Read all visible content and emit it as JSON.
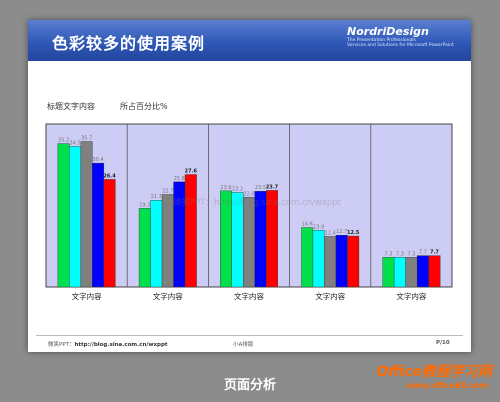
{
  "slide": {
    "title": "色彩较多的使用案例",
    "logo": {
      "name": "NordriDesign",
      "tagline1": "The Presentation Professionals",
      "tagline2": "Services and Solutions for Microsoft PowerPoint"
    },
    "subhead_left": "标题文字内容",
    "subhead_right": "所占百分比%",
    "watermark_center": "微笑PPT：http://blog.sina.com.cn/wxppt",
    "footer": {
      "left": "微笑PPT：",
      "link": "http://blog.sina.com.cn/wxppt",
      "center": "小A排版",
      "right": "P/10"
    }
  },
  "page_caption": "页面分析",
  "watermark": {
    "brand": "Office教程学习网",
    "url": "www.office68.com"
  },
  "colors": [
    "#00e04c",
    "#00ffff",
    "#808080",
    "#0000ff",
    "#ff0000"
  ],
  "chart_data": {
    "type": "bar",
    "categories": [
      "文字内容",
      "文字内容",
      "文字内容",
      "文字内容",
      "文字内容"
    ],
    "series": [
      {
        "values": [
          35.2,
          19.3,
          23.6,
          14.6,
          7.3
        ]
      },
      {
        "values": [
          34.5,
          21.3,
          23.2,
          13.9,
          7.3
        ]
      },
      {
        "values": [
          35.7,
          22.7,
          22.0,
          12.4,
          7.3
        ]
      },
      {
        "values": [
          30.4,
          25.8,
          23.5,
          12.7,
          7.7
        ]
      },
      {
        "values": [
          26.4,
          27.6,
          23.7,
          12.5,
          7.7
        ]
      }
    ],
    "data_labels": [
      [
        "35.2",
        "34.5",
        "35.7",
        "30.4",
        "26.4"
      ],
      [
        "19.3",
        "21.3",
        "22.7",
        "25.8",
        "27.6"
      ],
      [
        "23.6",
        "23.2",
        "22.0",
        "23.5",
        "23.7"
      ],
      [
        "14.6",
        "13.9",
        "12.4",
        "12.7",
        "12.5"
      ],
      [
        "7.3",
        "7.3",
        "7.3",
        "7.7",
        "7.7"
      ]
    ],
    "ylim": [
      0,
      40
    ],
    "plot_background": "#ccccf5",
    "grid": false,
    "legend": "none"
  }
}
